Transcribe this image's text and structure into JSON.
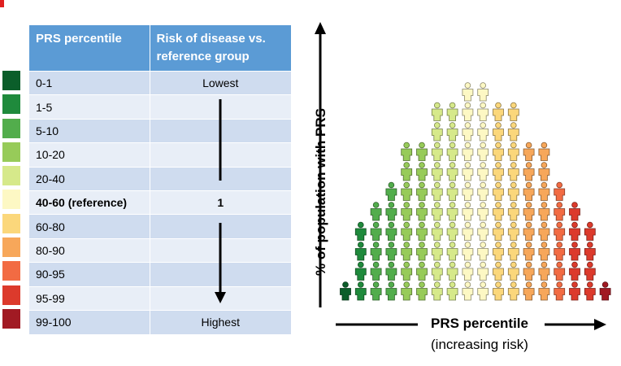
{
  "table": {
    "header_percentile": "PRS percentile",
    "header_risk": "Risk of disease vs. reference group",
    "rows": [
      {
        "percentile": "0-1",
        "risk": "Lowest",
        "color": "#0b5e2a"
      },
      {
        "percentile": "1-5",
        "risk": "",
        "color": "#1f8a3c"
      },
      {
        "percentile": "5-10",
        "risk": "",
        "color": "#52ad4c"
      },
      {
        "percentile": "10-20",
        "risk": "",
        "color": "#97cb59"
      },
      {
        "percentile": "20-40",
        "risk": "",
        "color": "#d6e98a"
      },
      {
        "percentile": "40-60 (reference)",
        "risk": "1",
        "color": "#fdf8c4"
      },
      {
        "percentile": "60-80",
        "risk": "",
        "color": "#fbd77b"
      },
      {
        "percentile": "80-90",
        "risk": "",
        "color": "#f7a75a"
      },
      {
        "percentile": "90-95",
        "risk": "",
        "color": "#f26b43"
      },
      {
        "percentile": "95-99",
        "risk": "",
        "color": "#dc3a2c"
      },
      {
        "percentile": "99-100",
        "risk": "Highest",
        "color": "#a11a23"
      }
    ]
  },
  "diagram": {
    "y_axis_label": "% of population with PRS",
    "x_axis_label": "PRS percentile",
    "x_axis_sublabel": "(increasing risk)",
    "column_counts": [
      1,
      4,
      5,
      6,
      8,
      8,
      10,
      10,
      11,
      11,
      10,
      10,
      8,
      8,
      6,
      5,
      4,
      1
    ],
    "column_colors": [
      "#0b5e2a",
      "#1f8a3c",
      "#52ad4c",
      "#52ad4c",
      "#97cb59",
      "#97cb59",
      "#d6e98a",
      "#d6e98a",
      "#fdf8c4",
      "#fdf8c4",
      "#fbd77b",
      "#fbd77b",
      "#f7a75a",
      "#f7a75a",
      "#f26b43",
      "#dc3a2c",
      "#dc3a2c",
      "#a11a23"
    ]
  }
}
